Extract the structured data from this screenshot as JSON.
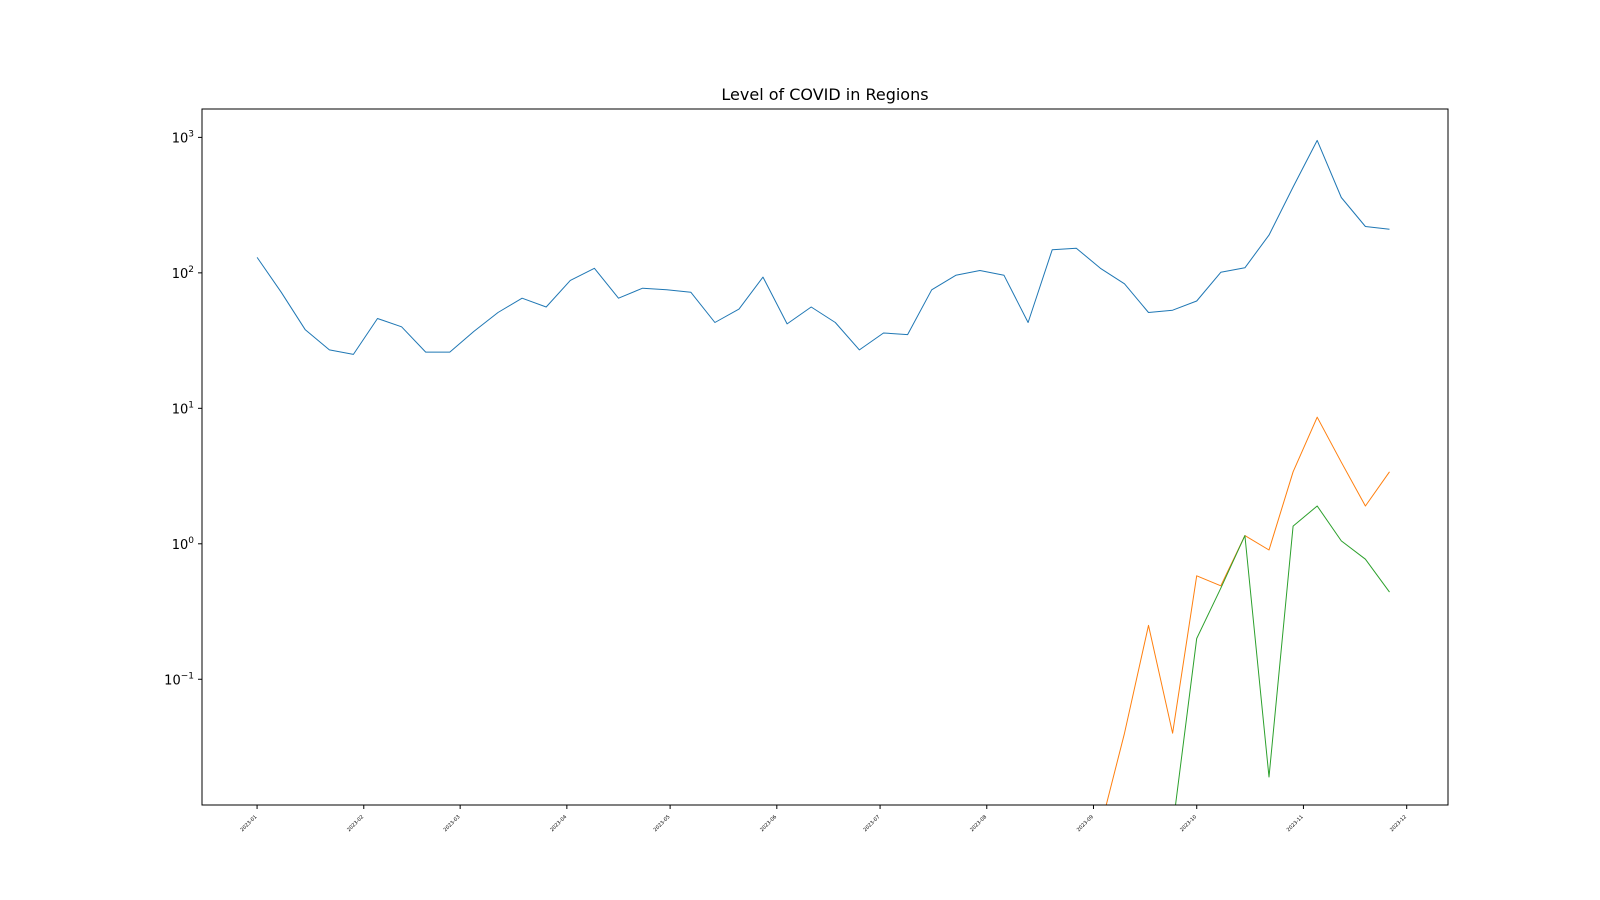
{
  "chart_data": {
    "type": "line",
    "title": "Level of COVID in Regions",
    "xlabel": "",
    "ylabel": "",
    "yscale": "log",
    "ylim": [
      0.0118,
      1620
    ],
    "xlim": [
      "2022-12-16",
      "2023-12-13"
    ],
    "grid": false,
    "legend": "none",
    "x_ticks": [
      "2023-01",
      "2023-02",
      "2023-03",
      "2023-04",
      "2023-05",
      "2023-06",
      "2023-07",
      "2023-08",
      "2023-09",
      "2023-10",
      "2023-11",
      "2023-12"
    ],
    "y_ticks": [
      {
        "value": 0.1,
        "base": "10",
        "exp": "−1"
      },
      {
        "value": 1,
        "base": "10",
        "exp": "0"
      },
      {
        "value": 10,
        "base": "10",
        "exp": "1"
      },
      {
        "value": 100,
        "base": "10",
        "exp": "2"
      },
      {
        "value": 1000,
        "base": "10",
        "exp": "3"
      }
    ],
    "x": [
      "2023-01-01",
      "2023-01-08",
      "2023-01-15",
      "2023-01-22",
      "2023-01-29",
      "2023-02-05",
      "2023-02-12",
      "2023-02-19",
      "2023-02-26",
      "2023-03-05",
      "2023-03-12",
      "2023-03-19",
      "2023-03-26",
      "2023-04-02",
      "2023-04-09",
      "2023-04-16",
      "2023-04-23",
      "2023-04-30",
      "2023-05-07",
      "2023-05-14",
      "2023-05-21",
      "2023-05-28",
      "2023-06-04",
      "2023-06-11",
      "2023-06-18",
      "2023-06-25",
      "2023-07-02",
      "2023-07-09",
      "2023-07-16",
      "2023-07-23",
      "2023-07-30",
      "2023-08-06",
      "2023-08-13",
      "2023-08-20",
      "2023-08-27",
      "2023-09-03",
      "2023-09-10",
      "2023-09-17",
      "2023-09-24",
      "2023-10-01",
      "2023-10-08",
      "2023-10-15",
      "2023-10-22",
      "2023-10-29",
      "2023-11-05",
      "2023-11-12",
      "2023-11-19",
      "2023-11-26"
    ],
    "series": [
      {
        "color": "#1f77b4",
        "values": [
          130,
          72,
          38,
          27,
          25,
          46,
          40,
          26,
          26,
          37,
          51,
          65,
          56,
          88,
          108,
          65,
          77,
          75,
          72,
          43,
          54,
          93,
          42,
          56,
          43,
          27,
          36,
          35,
          75,
          96,
          104,
          96,
          43,
          148,
          152,
          108,
          83,
          51,
          53,
          62,
          101,
          109,
          190,
          430,
          950,
          360,
          220,
          210
        ]
      },
      {
        "color": "#ff7f0e",
        "values": [
          null,
          null,
          null,
          null,
          null,
          null,
          null,
          null,
          null,
          null,
          null,
          null,
          null,
          null,
          null,
          null,
          null,
          null,
          null,
          null,
          null,
          null,
          null,
          null,
          null,
          null,
          null,
          null,
          null,
          null,
          null,
          null,
          null,
          null,
          null,
          0.008,
          0.04,
          0.25,
          0.04,
          0.58,
          0.49,
          1.15,
          0.9,
          3.4,
          8.6,
          4.0,
          1.9,
          3.4
        ]
      },
      {
        "color": "#2ca02c",
        "values": [
          null,
          null,
          null,
          null,
          null,
          null,
          null,
          null,
          null,
          null,
          null,
          null,
          null,
          null,
          null,
          null,
          null,
          null,
          null,
          null,
          null,
          null,
          null,
          null,
          null,
          null,
          null,
          null,
          null,
          null,
          null,
          null,
          null,
          null,
          null,
          null,
          null,
          null,
          0.008,
          0.2,
          0.47,
          1.15,
          0.019,
          1.35,
          1.9,
          1.05,
          0.77,
          0.44
        ]
      }
    ]
  }
}
